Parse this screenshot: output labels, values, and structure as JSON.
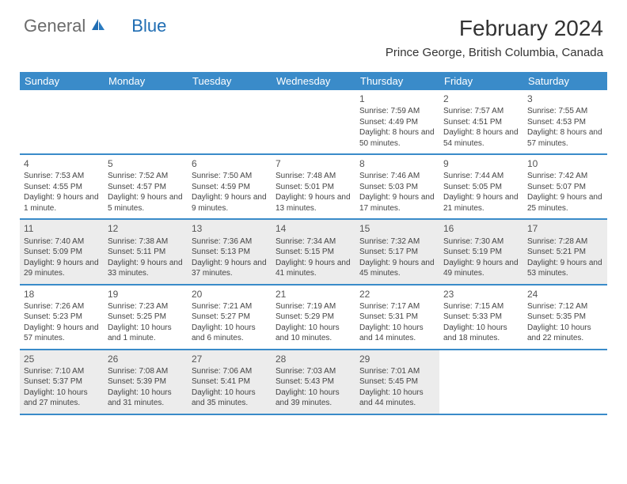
{
  "logo": {
    "general": "General",
    "blue": "Blue"
  },
  "title": "February 2024",
  "location": "Prince George, British Columbia, Canada",
  "colors": {
    "header_bg": "#3a8bc9",
    "header_text": "#ffffff",
    "border": "#3a8bc9",
    "shade_bg": "#ececec",
    "text": "#444444",
    "logo_general": "#6b6b6b",
    "logo_blue": "#1f6db3"
  },
  "weekdays": [
    "Sunday",
    "Monday",
    "Tuesday",
    "Wednesday",
    "Thursday",
    "Friday",
    "Saturday"
  ],
  "weeks": [
    [
      {
        "num": "",
        "empty": true
      },
      {
        "num": "",
        "empty": true
      },
      {
        "num": "",
        "empty": true
      },
      {
        "num": "",
        "empty": true
      },
      {
        "num": "1",
        "sunrise": "Sunrise: 7:59 AM",
        "sunset": "Sunset: 4:49 PM",
        "daylight": "Daylight: 8 hours and 50 minutes."
      },
      {
        "num": "2",
        "sunrise": "Sunrise: 7:57 AM",
        "sunset": "Sunset: 4:51 PM",
        "daylight": "Daylight: 8 hours and 54 minutes."
      },
      {
        "num": "3",
        "sunrise": "Sunrise: 7:55 AM",
        "sunset": "Sunset: 4:53 PM",
        "daylight": "Daylight: 8 hours and 57 minutes."
      }
    ],
    [
      {
        "num": "4",
        "sunrise": "Sunrise: 7:53 AM",
        "sunset": "Sunset: 4:55 PM",
        "daylight": "Daylight: 9 hours and 1 minute."
      },
      {
        "num": "5",
        "sunrise": "Sunrise: 7:52 AM",
        "sunset": "Sunset: 4:57 PM",
        "daylight": "Daylight: 9 hours and 5 minutes."
      },
      {
        "num": "6",
        "sunrise": "Sunrise: 7:50 AM",
        "sunset": "Sunset: 4:59 PM",
        "daylight": "Daylight: 9 hours and 9 minutes."
      },
      {
        "num": "7",
        "sunrise": "Sunrise: 7:48 AM",
        "sunset": "Sunset: 5:01 PM",
        "daylight": "Daylight: 9 hours and 13 minutes."
      },
      {
        "num": "8",
        "sunrise": "Sunrise: 7:46 AM",
        "sunset": "Sunset: 5:03 PM",
        "daylight": "Daylight: 9 hours and 17 minutes."
      },
      {
        "num": "9",
        "sunrise": "Sunrise: 7:44 AM",
        "sunset": "Sunset: 5:05 PM",
        "daylight": "Daylight: 9 hours and 21 minutes."
      },
      {
        "num": "10",
        "sunrise": "Sunrise: 7:42 AM",
        "sunset": "Sunset: 5:07 PM",
        "daylight": "Daylight: 9 hours and 25 minutes."
      }
    ],
    [
      {
        "num": "11",
        "shade": true,
        "sunrise": "Sunrise: 7:40 AM",
        "sunset": "Sunset: 5:09 PM",
        "daylight": "Daylight: 9 hours and 29 minutes."
      },
      {
        "num": "12",
        "shade": true,
        "sunrise": "Sunrise: 7:38 AM",
        "sunset": "Sunset: 5:11 PM",
        "daylight": "Daylight: 9 hours and 33 minutes."
      },
      {
        "num": "13",
        "shade": true,
        "sunrise": "Sunrise: 7:36 AM",
        "sunset": "Sunset: 5:13 PM",
        "daylight": "Daylight: 9 hours and 37 minutes."
      },
      {
        "num": "14",
        "shade": true,
        "sunrise": "Sunrise: 7:34 AM",
        "sunset": "Sunset: 5:15 PM",
        "daylight": "Daylight: 9 hours and 41 minutes."
      },
      {
        "num": "15",
        "shade": true,
        "sunrise": "Sunrise: 7:32 AM",
        "sunset": "Sunset: 5:17 PM",
        "daylight": "Daylight: 9 hours and 45 minutes."
      },
      {
        "num": "16",
        "shade": true,
        "sunrise": "Sunrise: 7:30 AM",
        "sunset": "Sunset: 5:19 PM",
        "daylight": "Daylight: 9 hours and 49 minutes."
      },
      {
        "num": "17",
        "shade": true,
        "sunrise": "Sunrise: 7:28 AM",
        "sunset": "Sunset: 5:21 PM",
        "daylight": "Daylight: 9 hours and 53 minutes."
      }
    ],
    [
      {
        "num": "18",
        "sunrise": "Sunrise: 7:26 AM",
        "sunset": "Sunset: 5:23 PM",
        "daylight": "Daylight: 9 hours and 57 minutes."
      },
      {
        "num": "19",
        "sunrise": "Sunrise: 7:23 AM",
        "sunset": "Sunset: 5:25 PM",
        "daylight": "Daylight: 10 hours and 1 minute."
      },
      {
        "num": "20",
        "sunrise": "Sunrise: 7:21 AM",
        "sunset": "Sunset: 5:27 PM",
        "daylight": "Daylight: 10 hours and 6 minutes."
      },
      {
        "num": "21",
        "sunrise": "Sunrise: 7:19 AM",
        "sunset": "Sunset: 5:29 PM",
        "daylight": "Daylight: 10 hours and 10 minutes."
      },
      {
        "num": "22",
        "sunrise": "Sunrise: 7:17 AM",
        "sunset": "Sunset: 5:31 PM",
        "daylight": "Daylight: 10 hours and 14 minutes."
      },
      {
        "num": "23",
        "sunrise": "Sunrise: 7:15 AM",
        "sunset": "Sunset: 5:33 PM",
        "daylight": "Daylight: 10 hours and 18 minutes."
      },
      {
        "num": "24",
        "sunrise": "Sunrise: 7:12 AM",
        "sunset": "Sunset: 5:35 PM",
        "daylight": "Daylight: 10 hours and 22 minutes."
      }
    ],
    [
      {
        "num": "25",
        "shade": true,
        "sunrise": "Sunrise: 7:10 AM",
        "sunset": "Sunset: 5:37 PM",
        "daylight": "Daylight: 10 hours and 27 minutes."
      },
      {
        "num": "26",
        "shade": true,
        "sunrise": "Sunrise: 7:08 AM",
        "sunset": "Sunset: 5:39 PM",
        "daylight": "Daylight: 10 hours and 31 minutes."
      },
      {
        "num": "27",
        "shade": true,
        "sunrise": "Sunrise: 7:06 AM",
        "sunset": "Sunset: 5:41 PM",
        "daylight": "Daylight: 10 hours and 35 minutes."
      },
      {
        "num": "28",
        "shade": true,
        "sunrise": "Sunrise: 7:03 AM",
        "sunset": "Sunset: 5:43 PM",
        "daylight": "Daylight: 10 hours and 39 minutes."
      },
      {
        "num": "29",
        "shade": true,
        "sunrise": "Sunrise: 7:01 AM",
        "sunset": "Sunset: 5:45 PM",
        "daylight": "Daylight: 10 hours and 44 minutes."
      },
      {
        "num": "",
        "empty": true,
        "shade": true
      },
      {
        "num": "",
        "empty": true,
        "shade": true
      }
    ]
  ]
}
